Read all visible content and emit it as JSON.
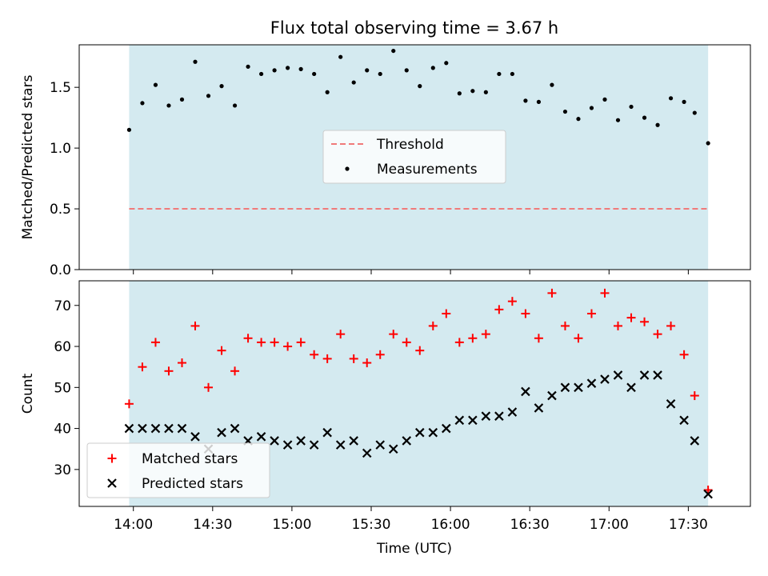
{
  "chart_data": {
    "title": "Flux total observing time = 3.67 h",
    "xlabel": "Time (UTC)",
    "x_tick_labels": [
      "14:00",
      "14:30",
      "15:00",
      "15:30",
      "16:00",
      "16:30",
      "17:00",
      "17:30"
    ],
    "x_ticks_min": [
      840,
      870,
      900,
      930,
      960,
      990,
      1020,
      1050
    ],
    "xlim_min": [
      819.5,
      1073.5
    ],
    "shaded_span_min": [
      838.4,
      1057.5
    ],
    "colors": {
      "shade": "#d4eaf0",
      "threshold": "#f07a7a",
      "matched": "#ff0000",
      "predicted": "#000000",
      "measurements": "#000000"
    },
    "times_min": [
      838.4,
      843.4,
      848.4,
      853.4,
      858.4,
      863.4,
      868.4,
      873.4,
      878.4,
      883.4,
      888.4,
      893.4,
      898.4,
      903.4,
      908.4,
      913.4,
      918.4,
      923.4,
      928.4,
      933.4,
      938.4,
      943.4,
      948.4,
      953.4,
      958.4,
      963.4,
      968.4,
      973.4,
      978.4,
      983.4,
      988.4,
      993.4,
      998.4,
      1003.4,
      1008.4,
      1013.4,
      1018.4,
      1023.4,
      1028.4,
      1033.4,
      1038.4,
      1043.4,
      1048.4,
      1052.4,
      1057.5
    ],
    "panels": [
      {
        "type": "scatter",
        "ylabel": "Matched/Predicted stars",
        "ylim": [
          0,
          1.85
        ],
        "y_tick_labels": [
          "0.0",
          "0.5",
          "1.0",
          "1.5"
        ],
        "y_ticks": [
          0,
          0.5,
          1.0,
          1.5
        ],
        "threshold": 0.5,
        "legend": [
          "Threshold",
          "Measurements"
        ],
        "legend_position": "center",
        "series": [
          {
            "name": "Measurements",
            "values": [
              1.15,
              1.37,
              1.52,
              1.35,
              1.4,
              1.71,
              1.43,
              1.51,
              1.35,
              1.67,
              1.61,
              1.64,
              1.66,
              1.65,
              1.61,
              1.46,
              1.75,
              1.54,
              1.64,
              1.61,
              1.8,
              1.64,
              1.51,
              1.66,
              1.7,
              1.45,
              1.47,
              1.46,
              1.61,
              1.61,
              1.39,
              1.38,
              1.52,
              1.3,
              1.24,
              1.33,
              1.4,
              1.23,
              1.34,
              1.25,
              1.19,
              1.41,
              1.38,
              1.29,
              1.04
            ]
          }
        ]
      },
      {
        "type": "scatter",
        "ylabel": "Count",
        "ylim": [
          21,
          76
        ],
        "y_tick_labels": [
          "30",
          "40",
          "50",
          "60",
          "70"
        ],
        "y_ticks": [
          30,
          40,
          50,
          60,
          70
        ],
        "legend": [
          "Matched stars",
          "Predicted stars"
        ],
        "legend_position": "lower left",
        "series": [
          {
            "name": "Matched stars",
            "values": [
              46,
              55,
              61,
              54,
              56,
              65,
              50,
              59,
              54,
              62,
              61,
              61,
              60,
              61,
              58,
              57,
              63,
              57,
              56,
              58,
              63,
              61,
              59,
              65,
              68,
              61,
              62,
              63,
              69,
              71,
              68,
              62,
              73,
              65,
              62,
              68,
              73,
              65,
              67,
              66,
              63,
              65,
              58,
              48,
              25
            ]
          },
          {
            "name": "Predicted stars",
            "values": [
              40,
              40,
              40,
              40,
              40,
              38,
              35,
              39,
              40,
              37,
              38,
              37,
              36,
              37,
              36,
              39,
              36,
              37,
              34,
              36,
              35,
              37,
              39,
              39,
              40,
              42,
              42,
              43,
              43,
              44,
              49,
              45,
              48,
              50,
              50,
              51,
              52,
              53,
              50,
              53,
              53,
              46,
              42,
              37,
              24
            ]
          }
        ]
      }
    ]
  }
}
